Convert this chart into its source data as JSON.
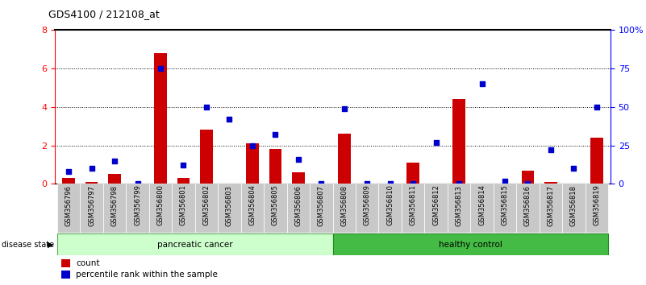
{
  "title": "GDS4100 / 212108_at",
  "categories": [
    "GSM356796",
    "GSM356797",
    "GSM356798",
    "GSM356799",
    "GSM356800",
    "GSM356801",
    "GSM356802",
    "GSM356803",
    "GSM356804",
    "GSM356805",
    "GSM356806",
    "GSM356807",
    "GSM356808",
    "GSM356809",
    "GSM356810",
    "GSM356811",
    "GSM356812",
    "GSM356813",
    "GSM356814",
    "GSM356815",
    "GSM356816",
    "GSM356817",
    "GSM356818",
    "GSM356819"
  ],
  "count_values": [
    0.3,
    0.1,
    0.5,
    0.0,
    6.8,
    0.3,
    2.8,
    0.0,
    2.1,
    1.8,
    0.6,
    0.0,
    2.6,
    0.0,
    0.0,
    1.1,
    0.0,
    4.4,
    0.0,
    0.0,
    0.7,
    0.1,
    0.0,
    2.4
  ],
  "percentile_values": [
    8,
    10,
    15,
    0,
    75,
    12,
    50,
    42,
    25,
    32,
    16,
    0,
    49,
    0,
    0,
    0,
    27,
    0,
    65,
    2,
    0,
    22,
    10,
    50
  ],
  "n_pancreatic": 12,
  "n_healthy": 12,
  "bar_color": "#cc0000",
  "dot_color": "#0000cc",
  "pancreatic_bg": "#ccffcc",
  "healthy_bg": "#44bb44",
  "tick_bg": "#cccccc",
  "ylim_left": [
    0,
    8
  ],
  "ylim_right": [
    0,
    100
  ],
  "yticks_left": [
    0,
    2,
    4,
    6,
    8
  ],
  "yticks_right": [
    0,
    25,
    50,
    75,
    100
  ],
  "ytick_labels_right": [
    "0",
    "25",
    "50",
    "75",
    "100%"
  ]
}
